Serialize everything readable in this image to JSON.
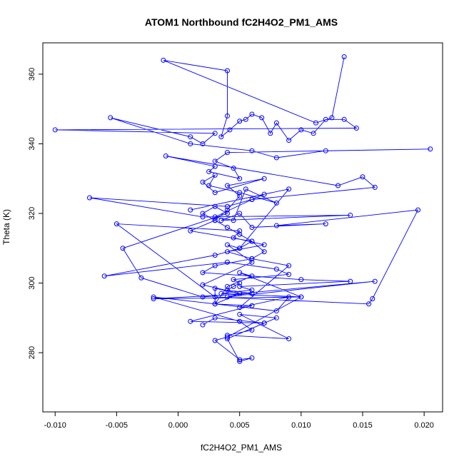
{
  "chart_data": {
    "type": "line",
    "title": "ATOM1 Northbound fC2H4O2_PM1_AMS",
    "xlabel": "fC2H4O2_PM1_AMS",
    "ylabel": "Theta (K)",
    "xlim": [
      -0.011,
      0.0215
    ],
    "ylim": [
      263,
      369
    ],
    "x_ticks": [
      -0.01,
      -0.005,
      0.0,
      0.005,
      0.01,
      0.015,
      0.02
    ],
    "x_tick_labels": [
      "-0.010",
      "-0.005",
      "0.000",
      "0.005",
      "0.010",
      "0.015",
      "0.020"
    ],
    "y_ticks": [
      280,
      300,
      320,
      340,
      360
    ],
    "y_tick_labels": [
      "280",
      "300",
      "320",
      "340",
      "360"
    ],
    "grid": false,
    "marker": "open-circle",
    "series_color": "#0000ff",
    "series": [
      {
        "x": [
          0.0135,
          0.0125,
          0.0112,
          -0.0012,
          0.004,
          0.004,
          0.0035,
          0.0042,
          0.005,
          0.0055,
          0.006,
          0.0068,
          0.0075,
          0.008,
          0.009,
          0.01,
          0.011,
          0.012,
          0.0135,
          0.0145,
          -0.01,
          0.003,
          0.002,
          0.001,
          -0.0055,
          0.001,
          0.006,
          0.008,
          0.012,
          0.0205,
          0.004,
          0.003,
          0.0045,
          0.005,
          0.0025,
          0.003,
          -0.001,
          0.013,
          0.015,
          0.016,
          0.006,
          0.004,
          -0.0072,
          0.002,
          0.014,
          0.0035,
          0.005,
          0.006,
          0.012,
          0.008,
          0.0195,
          0.0158,
          0.0155,
          0.003,
          -0.005,
          0.005,
          0.0045,
          0.007,
          0.004,
          0.006,
          0.003,
          0.002,
          0.01,
          0.014,
          0.005,
          0.006,
          0.0035,
          0.01,
          -0.002,
          0.006,
          0.004,
          0.0045,
          0.005,
          0.0045,
          0.009,
          0.008,
          0.004,
          -0.006,
          0.003,
          0.005,
          0.006,
          0.005,
          0.004,
          0.003,
          0.002,
          0.003,
          0.004,
          -0.0045,
          -0.003,
          0.002,
          0.016,
          0.004,
          0.005,
          0.003,
          0.003,
          0.006,
          0.001,
          0.007,
          0.008,
          0.005,
          0.009,
          0.004,
          0.006,
          0.005,
          -0.002,
          0.008,
          0.009,
          0.005,
          0.009,
          0.006,
          0.007,
          0.006,
          0.001,
          0.003,
          0.004,
          0.005,
          0.004,
          0.007,
          0.003,
          0.002,
          0.003,
          0.0025,
          0.005,
          0.008,
          0.0055,
          0.0045,
          0.003,
          0.006,
          0.007,
          0.001,
          0.009,
          0.005,
          0.004,
          0.006,
          0.002,
          0.005,
          0.003,
          0.004,
          0.006,
          0.005,
          0.01,
          0.004,
          0.003,
          0.005,
          0.006,
          0.005,
          0.004,
          0.007,
          0.003,
          0.002
        ],
        "y": [
          365.0,
          347.5,
          346.0,
          364.0,
          361.0,
          348.0,
          342.0,
          344.0,
          346.5,
          347.0,
          348.5,
          347.5,
          343.0,
          346.0,
          341.0,
          344.0,
          343.0,
          347.0,
          347.0,
          344.5,
          344.0,
          343.0,
          340.0,
          342.0,
          347.5,
          340.0,
          338.0,
          336.0,
          338.0,
          338.5,
          337.5,
          335.0,
          333.0,
          330.0,
          332.0,
          333.5,
          336.5,
          328.0,
          330.5,
          327.5,
          324.0,
          322.0,
          324.5,
          319.0,
          319.5,
          318.0,
          320.0,
          316.0,
          317.0,
          316.5,
          321.0,
          295.5,
          294.0,
          296.0,
          317.0,
          315.0,
          313.0,
          311.0,
          309.0,
          307.0,
          305.0,
          303.0,
          301.0,
          300.5,
          299.0,
          298.0,
          297.0,
          296.0,
          295.5,
          297.0,
          298.0,
          299.0,
          300.0,
          301.0,
          302.5,
          304.0,
          306.0,
          302.0,
          308.0,
          310.0,
          312.0,
          314.0,
          316.0,
          318.0,
          320.0,
          322.0,
          320.0,
          310.0,
          301.5,
          296.0,
          300.5,
          296.0,
          297.0,
          298.5,
          294.0,
          293.5,
          289.0,
          288.5,
          290.0,
          291.0,
          284.0,
          285.0,
          286.5,
          289.0,
          296.0,
          292.0,
          296.0,
          293.0,
          305.0,
          307.0,
          309.0,
          312.0,
          315.0,
          318.0,
          321.0,
          325.0,
          328.0,
          330.0,
          326.0,
          329.0,
          331.0,
          328.0,
          326.0,
          323.0,
          327.0,
          318.0,
          319.0,
          324.0,
          325.5,
          321.0,
          327.0,
          310.0,
          311.0,
          306.0,
          299.5,
          297.0,
          294.0,
          299.0,
          302.0,
          303.0,
          296.0,
          284.5,
          283.5,
          278.0,
          278.5,
          277.5,
          284.0,
          288.5,
          290.0,
          288.0
        ]
      }
    ]
  }
}
